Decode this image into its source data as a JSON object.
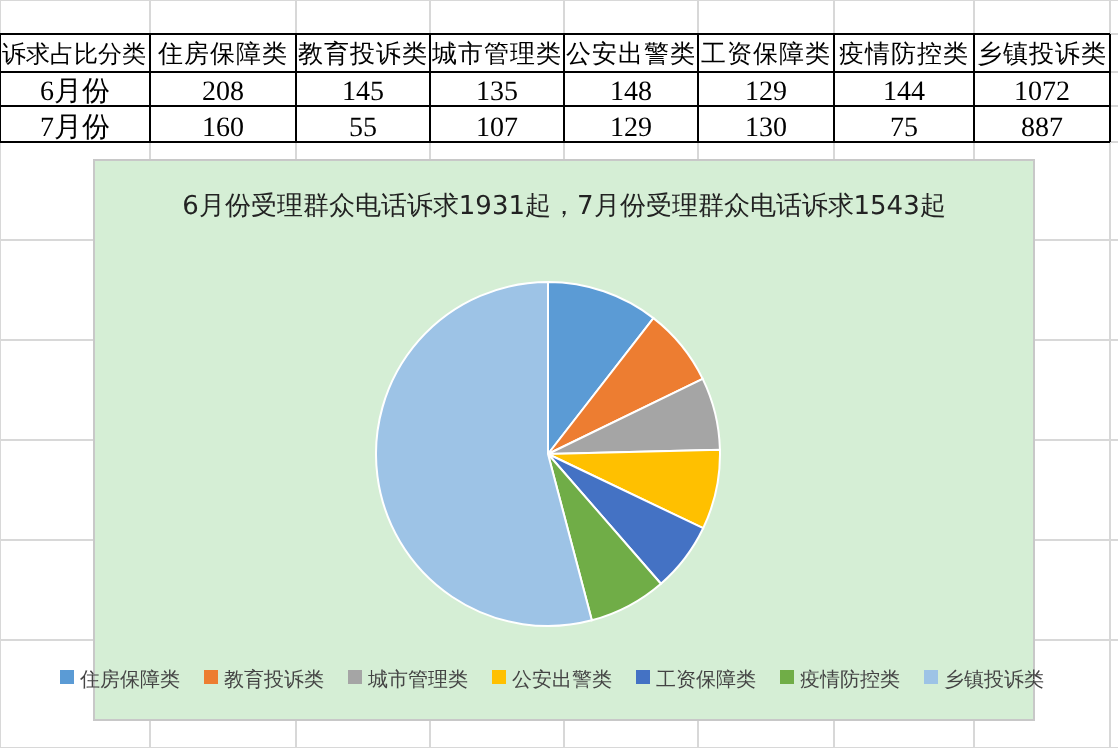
{
  "chart_data": [
    {
      "type": "other",
      "title": "诉求占比分类",
      "data_labels": true,
      "categories": [
        "住房保障类",
        "教育投诉类",
        "城市管理类",
        "公安出警类",
        "工资保障类",
        "疫情防控类",
        "乡镇投诉类"
      ],
      "series": [
        {
          "name": "6月份",
          "values": [
            208,
            145,
            135,
            148,
            129,
            144,
            1072
          ]
        },
        {
          "name": "7月份",
          "values": [
            160,
            55,
            107,
            129,
            130,
            75,
            887
          ]
        }
      ]
    },
    {
      "type": "pie",
      "title": "6月份受理群众电话诉求1931起，7月份受理群众电话诉求1543起",
      "categories": [
        "住房保障类",
        "教育投诉类",
        "城市管理类",
        "公安出警类",
        "工资保障类",
        "疫情防控类",
        "乡镇投诉类"
      ],
      "values": [
        10.5,
        7.3,
        6.8,
        7.5,
        6.5,
        7.3,
        54.1
      ],
      "colors": [
        "#5b9bd5",
        "#ed7d31",
        "#a5a5a5",
        "#ffc000",
        "#4472c4",
        "#70ad47",
        "#9dc3e6"
      ],
      "legend": "bottom"
    }
  ]
}
